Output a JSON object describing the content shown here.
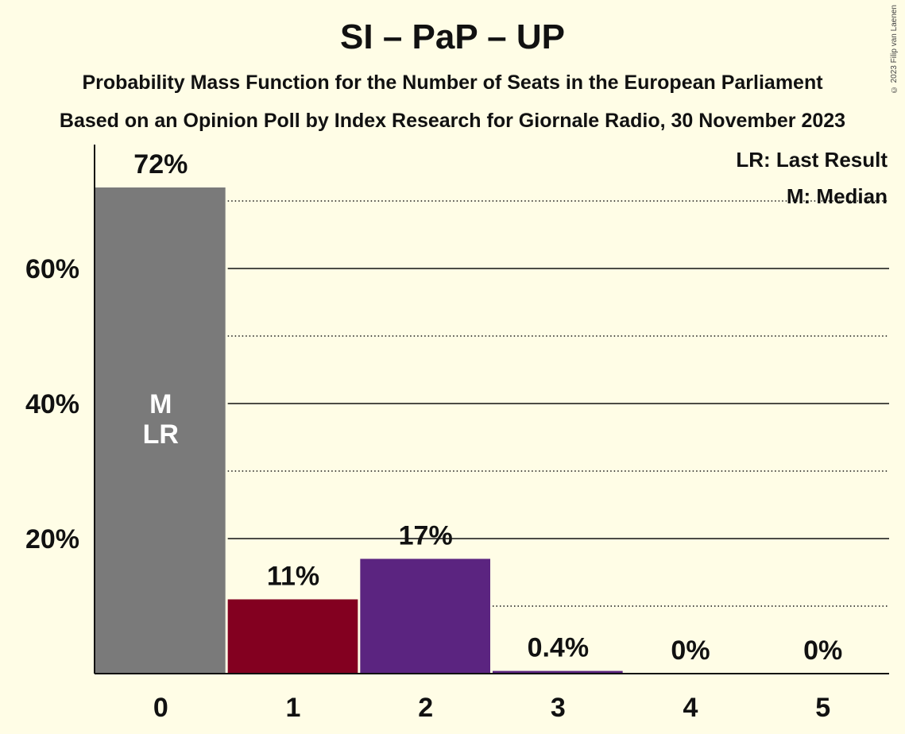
{
  "title": "SI – PaP – UP",
  "subtitle_1": "Probability Mass Function for the Number of Seats in the European Parliament",
  "subtitle_2": "Based on an Opinion Poll by Index Research for Giornale Radio, 30 November 2023",
  "copyright": "© 2023 Filip van Laenen",
  "legend": {
    "last_result": "LR: Last Result",
    "median": "M: Median"
  },
  "colors": {
    "background": "#fffde6",
    "bar_0": "#7a7a7a",
    "bar_1": "#830020",
    "bar_2": "#5b2480",
    "bar_3": "#5b2480",
    "bar_4": "#5b2480",
    "bar_5": "#5b2480"
  },
  "chart_data": {
    "type": "bar",
    "title": "SI – PaP – UP",
    "xlabel": "",
    "ylabel": "",
    "categories": [
      "0",
      "1",
      "2",
      "3",
      "4",
      "5"
    ],
    "values": [
      72,
      11,
      17,
      0.4,
      0,
      0
    ],
    "value_labels": [
      "72%",
      "11%",
      "17%",
      "0.4%",
      "0%",
      "0%"
    ],
    "ylim": [
      0,
      78
    ],
    "y_ticks": [
      20,
      40,
      60
    ],
    "y_tick_labels": [
      "20%",
      "40%",
      "60%"
    ],
    "y_minor_gridlines": [
      10,
      30,
      50,
      70
    ],
    "median_index": 0,
    "last_result_index": 0,
    "median_marker": "M",
    "last_result_marker": "LR"
  }
}
